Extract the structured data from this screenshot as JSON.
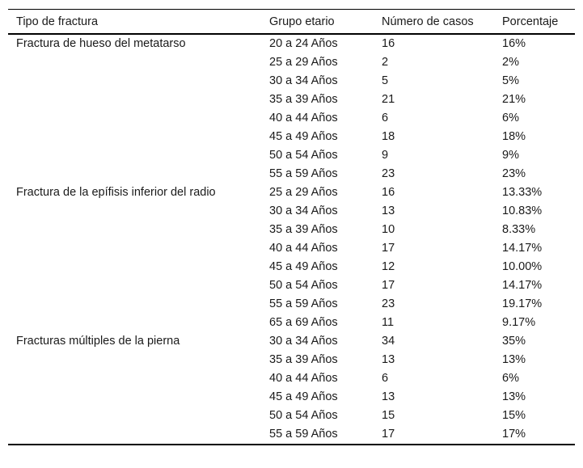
{
  "colors": {
    "background": "#ffffff",
    "text": "#1a1a1a",
    "border": "#000000"
  },
  "chart_data": {
    "type": "table",
    "columns": [
      "Tipo de fractura",
      "Grupo etario",
      "Número de casos",
      "Porcentaje"
    ],
    "groups": [
      {
        "tipo": "Fractura de hueso del metatarso",
        "rows": [
          {
            "grupo": "20 a 24 Años",
            "casos": 16,
            "porcentaje": "16%"
          },
          {
            "grupo": "25 a 29 Años",
            "casos": 2,
            "porcentaje": "2%"
          },
          {
            "grupo": "30 a 34 Años",
            "casos": 5,
            "porcentaje": "5%"
          },
          {
            "grupo": "35 a 39 Años",
            "casos": 21,
            "porcentaje": "21%"
          },
          {
            "grupo": "40 a 44 Años",
            "casos": 6,
            "porcentaje": "6%"
          },
          {
            "grupo": "45 a 49 Años",
            "casos": 18,
            "porcentaje": "18%"
          },
          {
            "grupo": "50 a 54 Años",
            "casos": 9,
            "porcentaje": "9%"
          },
          {
            "grupo": "55 a 59 Años",
            "casos": 23,
            "porcentaje": "23%"
          }
        ]
      },
      {
        "tipo": "Fractura de la epífisis inferior del radio",
        "rows": [
          {
            "grupo": "25 a 29 Años",
            "casos": 16,
            "porcentaje": "13.33%"
          },
          {
            "grupo": "30 a 34 Años",
            "casos": 13,
            "porcentaje": "10.83%"
          },
          {
            "grupo": "35 a 39 Años",
            "casos": 10,
            "porcentaje": "8.33%"
          },
          {
            "grupo": "40 a 44 Años",
            "casos": 17,
            "porcentaje": "14.17%"
          },
          {
            "grupo": "45 a 49 Años",
            "casos": 12,
            "porcentaje": "10.00%"
          },
          {
            "grupo": "50 a 54 Años",
            "casos": 17,
            "porcentaje": "14.17%"
          },
          {
            "grupo": "55 a 59 Años",
            "casos": 23,
            "porcentaje": "19.17%"
          },
          {
            "grupo": "65 a 69 Años",
            "casos": 11,
            "porcentaje": "9.17%"
          }
        ]
      },
      {
        "tipo": "Fracturas múltiples de la pierna",
        "rows": [
          {
            "grupo": "30 a 34 Años",
            "casos": 34,
            "porcentaje": "35%"
          },
          {
            "grupo": "35 a 39 Años",
            "casos": 13,
            "porcentaje": "13%"
          },
          {
            "grupo": "40 a 44 Años",
            "casos": 6,
            "porcentaje": "6%"
          },
          {
            "grupo": "45 a 49 Años",
            "casos": 13,
            "porcentaje": "13%"
          },
          {
            "grupo": "50 a 54 Años",
            "casos": 15,
            "porcentaje": "15%"
          },
          {
            "grupo": "55 a 59 Años",
            "casos": 17,
            "porcentaje": "17%"
          }
        ]
      }
    ]
  }
}
